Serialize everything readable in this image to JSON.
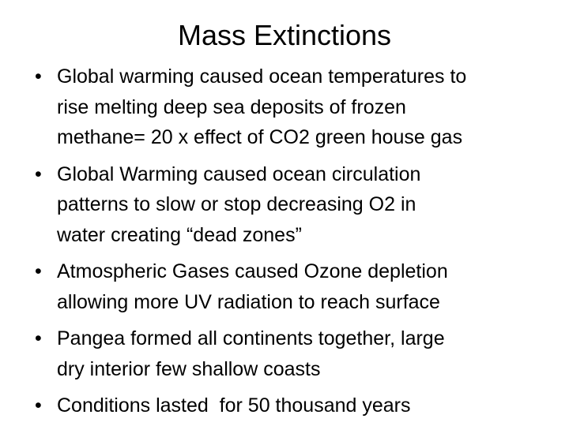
{
  "title": "Mass Extinctions",
  "bullets": [
    [
      "Global warming caused ocean temperatures to",
      "rise melting deep sea deposits of frozen",
      "methane= 20 x effect of CO2 green house gas"
    ],
    [
      "Global Warming caused ocean circulation",
      "patterns to slow or stop decreasing O2 in",
      "water creating “dead zones”"
    ],
    [
      "Atmospheric Gases caused Ozone depletion",
      "allowing more UV radiation to reach surface"
    ],
    [
      "Pangea formed all continents together, large",
      "dry interior few shallow coasts"
    ],
    [
      "Conditions lasted  for 50 thousand years"
    ]
  ]
}
